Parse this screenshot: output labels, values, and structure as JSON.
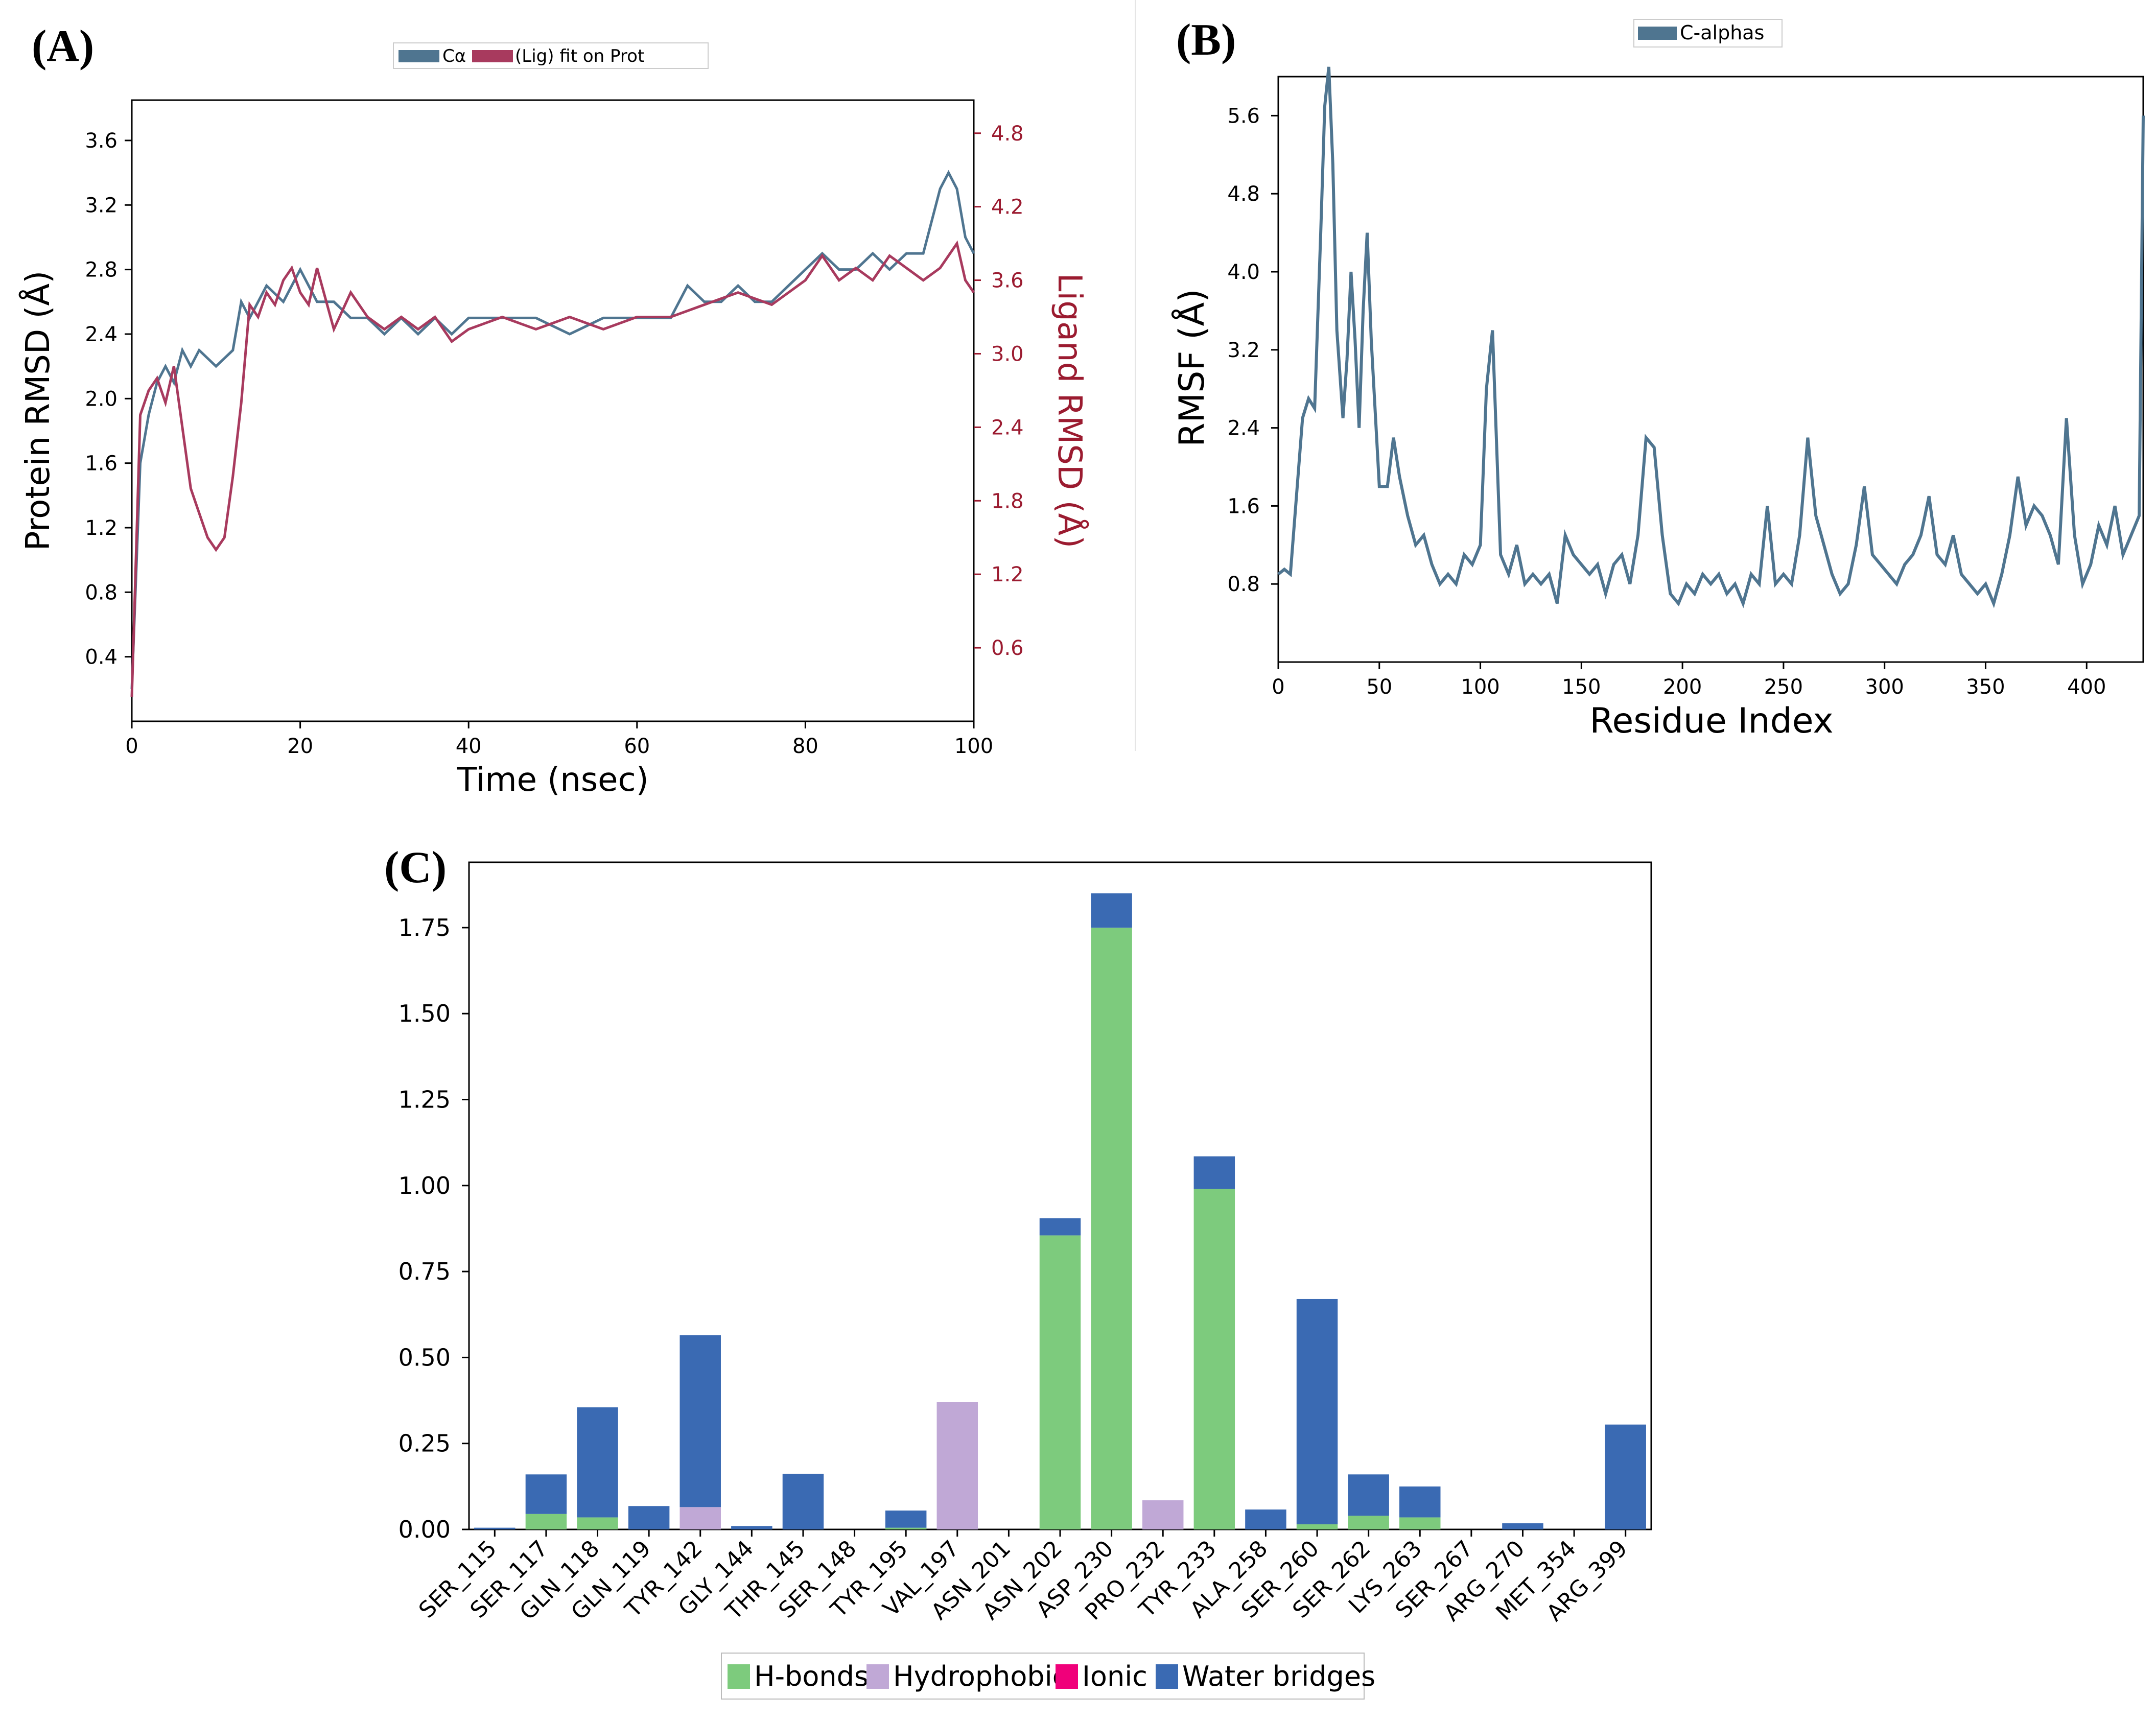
{
  "colors": {
    "protein": "#4f7590",
    "ligand": "#a83a5e",
    "ligand_axis": "#9b1b30",
    "rmsf": "#4f7590",
    "hbonds": "#7dcb7d",
    "hydrophobic": "#c0a8d6",
    "ionic": "#f0007a",
    "water": "#3a6ab3"
  },
  "panels": {
    "a": "(A)",
    "b": "(B)",
    "c": "(C)"
  },
  "chart_data": [
    {
      "id": "A",
      "type": "line",
      "title": "",
      "xlabel": "Time (nsec)",
      "ylabel": "Protein RMSD (Å)",
      "y2label": "Ligand RMSD (Å)",
      "xlim": [
        0,
        100
      ],
      "ylim": [
        0,
        3.85
      ],
      "y2lim": [
        0.0,
        5.07
      ],
      "xticks": [
        "0",
        "20",
        "40",
        "60",
        "80",
        "100"
      ],
      "yticks": [
        "0.4",
        "0.8",
        "1.2",
        "1.6",
        "2.0",
        "2.4",
        "2.8",
        "3.2",
        "3.6"
      ],
      "y2ticks": [
        "0.6",
        "1.2",
        "1.8",
        "2.4",
        "3.0",
        "3.6",
        "4.2",
        "4.8"
      ],
      "legend": [
        "Cα",
        "(Lig) fit on Prot"
      ],
      "series": [
        {
          "name": "Cα",
          "x": [
            0,
            1,
            2,
            3,
            4,
            5,
            6,
            7,
            8,
            10,
            12,
            13,
            14,
            16,
            18,
            20,
            22,
            24,
            26,
            28,
            30,
            32,
            34,
            36,
            38,
            40,
            44,
            48,
            52,
            56,
            60,
            64,
            66,
            68,
            70,
            72,
            74,
            76,
            78,
            80,
            82,
            84,
            86,
            88,
            90,
            92,
            94,
            95,
            96,
            97,
            98,
            99,
            100
          ],
          "values": [
            0.2,
            1.6,
            1.9,
            2.1,
            2.2,
            2.1,
            2.3,
            2.2,
            2.3,
            2.2,
            2.3,
            2.6,
            2.5,
            2.7,
            2.6,
            2.8,
            2.6,
            2.6,
            2.5,
            2.5,
            2.4,
            2.5,
            2.4,
            2.5,
            2.4,
            2.5,
            2.5,
            2.5,
            2.4,
            2.5,
            2.5,
            2.5,
            2.7,
            2.6,
            2.6,
            2.7,
            2.6,
            2.6,
            2.7,
            2.8,
            2.9,
            2.8,
            2.8,
            2.9,
            2.8,
            2.9,
            2.9,
            3.1,
            3.3,
            3.4,
            3.3,
            3.0,
            2.9
          ]
        },
        {
          "name": "(Lig) fit on Prot",
          "axis": "right",
          "x": [
            0,
            1,
            2,
            3,
            4,
            5,
            6,
            7,
            8,
            9,
            10,
            11,
            12,
            13,
            14,
            15,
            16,
            17,
            18,
            19,
            20,
            21,
            22,
            24,
            26,
            28,
            30,
            32,
            34,
            36,
            38,
            40,
            44,
            48,
            52,
            56,
            60,
            64,
            68,
            72,
            76,
            80,
            82,
            84,
            86,
            88,
            90,
            92,
            94,
            96,
            98,
            99,
            100
          ],
          "values": [
            0.2,
            2.5,
            2.7,
            2.8,
            2.6,
            2.9,
            2.4,
            1.9,
            1.7,
            1.5,
            1.4,
            1.5,
            2.0,
            2.6,
            3.4,
            3.3,
            3.5,
            3.4,
            3.6,
            3.7,
            3.5,
            3.4,
            3.7,
            3.2,
            3.5,
            3.3,
            3.2,
            3.3,
            3.2,
            3.3,
            3.1,
            3.2,
            3.3,
            3.2,
            3.3,
            3.2,
            3.3,
            3.3,
            3.4,
            3.5,
            3.4,
            3.6,
            3.8,
            3.6,
            3.7,
            3.6,
            3.8,
            3.7,
            3.6,
            3.7,
            3.9,
            3.6,
            3.5
          ]
        }
      ]
    },
    {
      "id": "B",
      "type": "line",
      "title": "",
      "xlabel": "Residue Index",
      "ylabel": "RMSF (Å)",
      "xlim": [
        0,
        428
      ],
      "ylim": [
        0,
        6.0
      ],
      "xticks": [
        "0",
        "50",
        "100",
        "150",
        "200",
        "250",
        "300",
        "350",
        "400"
      ],
      "yticks": [
        "0.8",
        "1.6",
        "2.4",
        "3.2",
        "4.0",
        "4.8",
        "5.6"
      ],
      "legend": [
        "C-alphas"
      ],
      "series": [
        {
          "name": "C-alphas",
          "x": [
            0,
            3,
            6,
            9,
            12,
            15,
            18,
            21,
            23,
            25,
            27,
            29,
            32,
            34,
            36,
            38,
            40,
            42,
            44,
            46,
            50,
            54,
            57,
            60,
            64,
            68,
            72,
            76,
            80,
            84,
            88,
            92,
            96,
            100,
            103,
            106,
            110,
            114,
            118,
            122,
            126,
            130,
            134,
            138,
            142,
            146,
            150,
            154,
            158,
            162,
            166,
            170,
            174,
            178,
            182,
            186,
            190,
            194,
            198,
            202,
            206,
            210,
            214,
            218,
            222,
            226,
            230,
            234,
            238,
            242,
            246,
            250,
            254,
            258,
            262,
            266,
            270,
            274,
            278,
            282,
            286,
            290,
            294,
            298,
            302,
            306,
            310,
            314,
            318,
            322,
            326,
            330,
            334,
            338,
            342,
            346,
            350,
            354,
            358,
            362,
            366,
            370,
            374,
            378,
            382,
            386,
            390,
            394,
            398,
            402,
            406,
            410,
            414,
            418,
            422,
            426,
            428
          ],
          "values": [
            0.9,
            0.95,
            0.9,
            1.7,
            2.5,
            2.7,
            2.6,
            4.4,
            5.7,
            6.1,
            5.1,
            3.4,
            2.5,
            3.1,
            4.0,
            3.3,
            2.4,
            3.6,
            4.4,
            3.3,
            1.8,
            1.8,
            2.3,
            1.9,
            1.5,
            1.2,
            1.3,
            1.0,
            0.8,
            0.9,
            0.8,
            1.1,
            1.0,
            1.2,
            2.8,
            3.4,
            1.1,
            0.9,
            1.2,
            0.8,
            0.9,
            0.8,
            0.9,
            0.6,
            1.3,
            1.1,
            1.0,
            0.9,
            1.0,
            0.7,
            1.0,
            1.1,
            0.8,
            1.3,
            2.3,
            2.2,
            1.3,
            0.7,
            0.6,
            0.8,
            0.7,
            0.9,
            0.8,
            0.9,
            0.7,
            0.8,
            0.6,
            0.9,
            0.8,
            1.6,
            0.8,
            0.9,
            0.8,
            1.3,
            2.3,
            1.5,
            1.2,
            0.9,
            0.7,
            0.8,
            1.2,
            1.8,
            1.1,
            1.0,
            0.9,
            0.8,
            1.0,
            1.1,
            1.3,
            1.7,
            1.1,
            1.0,
            1.3,
            0.9,
            0.8,
            0.7,
            0.8,
            0.6,
            0.9,
            1.3,
            1.9,
            1.4,
            1.6,
            1.5,
            1.3,
            1.0,
            2.5,
            1.3,
            0.8,
            1.0,
            1.4,
            1.2,
            1.6,
            1.1,
            1.3,
            1.5,
            5.6
          ]
        }
      ]
    },
    {
      "id": "C",
      "type": "bar",
      "stacked": true,
      "title": "",
      "xlabel": "",
      "ylabel": "",
      "ylim": [
        0,
        1.94
      ],
      "yticks": [
        "0.00",
        "0.25",
        "0.50",
        "0.75",
        "1.00",
        "1.25",
        "1.50",
        "1.75"
      ],
      "legend": [
        "H-bonds",
        "Hydrophobic",
        "Ionic",
        "Water bridges"
      ],
      "categories": [
        "SER_115",
        "SER_117",
        "GLN_118",
        "GLN_119",
        "TYR_142",
        "GLY_144",
        "THR_145",
        "SER_148",
        "TYR_195",
        "VAL_197",
        "ASN_201",
        "ASN_202",
        "ASP_230",
        "PRO_232",
        "TYR_233",
        "ALA_258",
        "SER_260",
        "SER_262",
        "LYS_263",
        "SER_267",
        "ARG_270",
        "MET_354",
        "ARG_399"
      ],
      "series": [
        {
          "name": "H-bonds",
          "values": [
            0,
            0.045,
            0.035,
            0,
            0,
            0,
            0,
            0,
            0.005,
            0,
            0,
            0.855,
            1.75,
            0,
            0.99,
            0,
            0.015,
            0.04,
            0.035,
            0,
            0,
            0,
            0
          ]
        },
        {
          "name": "Hydrophobic",
          "values": [
            0,
            0,
            0,
            0,
            0.065,
            0,
            0,
            0,
            0,
            0.37,
            0,
            0,
            0,
            0.085,
            0,
            0,
            0,
            0,
            0,
            0,
            0,
            0,
            0
          ]
        },
        {
          "name": "Ionic",
          "values": [
            0,
            0,
            0,
            0,
            0,
            0,
            0,
            0,
            0,
            0,
            0,
            0,
            0,
            0,
            0,
            0,
            0,
            0,
            0,
            0,
            0,
            0,
            0
          ]
        },
        {
          "name": "Water bridges",
          "values": [
            0.005,
            0.115,
            0.32,
            0.068,
            0.5,
            0.01,
            0.162,
            0,
            0.05,
            0,
            0,
            0.05,
            0.1,
            0,
            0.095,
            0.058,
            0.655,
            0.12,
            0.09,
            0,
            0.018,
            0,
            0.305
          ]
        }
      ]
    }
  ]
}
